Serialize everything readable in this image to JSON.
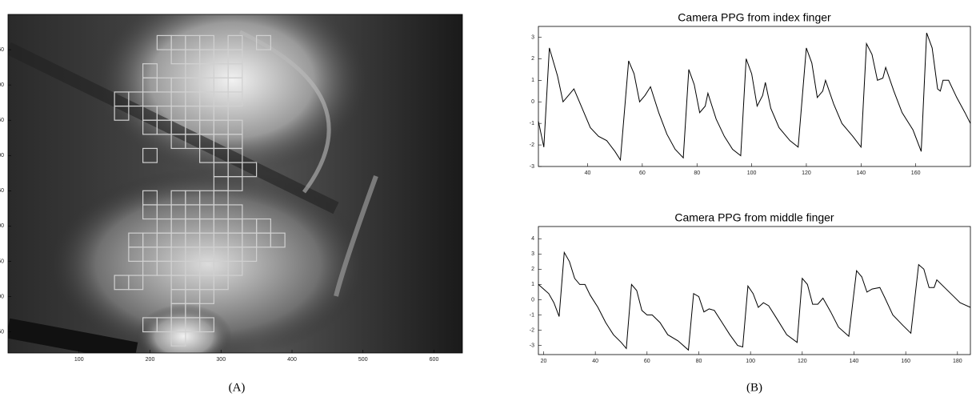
{
  "chart_data": [
    {
      "type": "image",
      "xlim": [
        0,
        640
      ],
      "ylim": [
        480,
        0
      ],
      "xticks": [
        100,
        200,
        300,
        400,
        500,
        600
      ],
      "yticks": [
        50,
        100,
        150,
        200,
        250,
        300,
        350,
        400,
        450
      ]
    },
    {
      "type": "line",
      "title": "Camera PPG from index finger",
      "color": "#000000",
      "x": [
        22,
        24,
        26,
        29,
        31,
        33,
        35,
        38,
        41,
        44,
        47,
        50,
        52,
        55,
        57,
        59,
        61,
        63,
        66,
        69,
        72,
        75,
        77,
        79,
        81,
        83,
        84,
        87,
        90,
        93,
        96,
        98,
        100,
        102,
        104,
        105,
        107,
        110,
        114,
        117,
        120,
        122,
        124,
        126,
        127,
        130,
        133,
        137,
        140,
        142,
        144,
        146,
        148,
        149,
        152,
        155,
        159,
        162,
        164,
        166,
        168,
        169,
        170,
        172,
        175,
        178,
        180
      ],
      "values": [
        -0.9,
        -2.1,
        2.5,
        1.2,
        0.0,
        0.3,
        0.6,
        -0.3,
        -1.2,
        -1.6,
        -1.8,
        -2.3,
        -2.7,
        1.9,
        1.3,
        0.0,
        0.3,
        0.7,
        -0.5,
        -1.5,
        -2.2,
        -2.6,
        1.5,
        0.8,
        -0.5,
        -0.2,
        0.4,
        -0.8,
        -1.6,
        -2.2,
        -2.5,
        2.0,
        1.3,
        -0.2,
        0.3,
        0.9,
        -0.3,
        -1.2,
        -1.8,
        -2.1,
        2.5,
        1.8,
        0.2,
        0.5,
        1.0,
        -0.1,
        -1.0,
        -1.6,
        -2.1,
        2.7,
        2.2,
        1.0,
        1.1,
        1.6,
        0.5,
        -0.5,
        -1.3,
        -2.3,
        3.2,
        2.5,
        0.6,
        0.5,
        1.0,
        1.0,
        0.2,
        -0.5,
        -1.0
      ],
      "xlim": [
        22,
        180
      ],
      "ylim": [
        -3,
        3.5
      ],
      "xticks": [
        40,
        60,
        80,
        100,
        120,
        140,
        160
      ],
      "yticks": [
        -3,
        -2,
        -1,
        0,
        1,
        2,
        3
      ]
    },
    {
      "type": "line",
      "title": "Camera PPG from middle finger",
      "color": "#000000",
      "x": [
        18,
        20,
        22,
        24,
        26,
        28,
        30,
        32,
        34,
        36,
        38,
        41,
        44,
        47,
        50,
        52,
        54,
        56,
        58,
        60,
        62,
        65,
        68,
        72,
        76,
        78,
        80,
        82,
        84,
        86,
        89,
        92,
        95,
        97,
        99,
        101,
        103,
        105,
        107,
        110,
        114,
        118,
        120,
        122,
        124,
        126,
        128,
        131,
        134,
        138,
        141,
        143,
        145,
        147,
        150,
        152,
        155,
        159,
        162,
        165,
        167,
        169,
        171,
        172,
        175,
        178,
        181,
        185
      ],
      "values": [
        1.0,
        0.7,
        0.4,
        -0.2,
        -1.1,
        3.1,
        2.5,
        1.4,
        1.0,
        1.0,
        0.3,
        -0.5,
        -1.5,
        -2.3,
        -2.8,
        -3.2,
        1.0,
        0.6,
        -0.7,
        -1.0,
        -1.0,
        -1.5,
        -2.3,
        -2.7,
        -3.3,
        0.4,
        0.2,
        -0.8,
        -0.6,
        -0.7,
        -1.5,
        -2.3,
        -3.0,
        -3.1,
        0.9,
        0.4,
        -0.5,
        -0.2,
        -0.4,
        -1.2,
        -2.3,
        -2.8,
        1.4,
        1.0,
        -0.3,
        -0.3,
        0.1,
        -0.8,
        -1.8,
        -2.4,
        1.9,
        1.5,
        0.5,
        0.7,
        0.8,
        0.1,
        -1.0,
        -1.7,
        -2.2,
        2.3,
        2.0,
        0.8,
        0.8,
        1.3,
        0.8,
        0.3,
        -0.2,
        -0.5
      ],
      "xlim": [
        18,
        185
      ],
      "ylim": [
        -3.6,
        4.8
      ],
      "xticks": [
        20,
        40,
        60,
        80,
        100,
        120,
        140,
        160,
        180
      ],
      "yticks": [
        -3,
        -2,
        -1,
        0,
        1,
        2,
        3,
        4
      ]
    }
  ],
  "captions": [
    "(A)",
    "(B)"
  ]
}
